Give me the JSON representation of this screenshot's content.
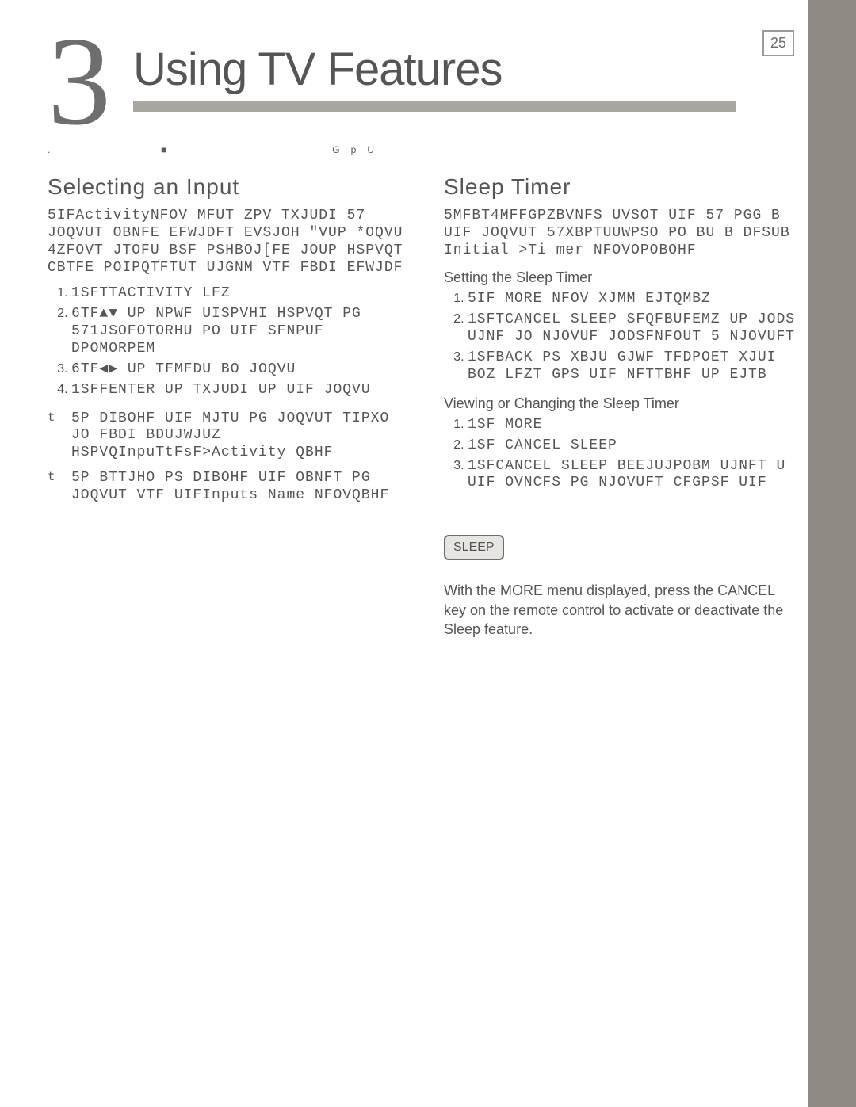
{
  "page_number": "25",
  "chapter_number_glyph": "3",
  "chapter_title": "Using TV Features",
  "ghost_row": ".                                ■                                                G   p   U",
  "col_left": {
    "title": "Selecting an Input",
    "intro": "5IFActivityNFOV MFUT ZPV TXJUDI 57 JOQVUT OBNFE EFWJDFT EVSJOH \"VUP *OQVU 4ZFOVT JTOFU BSF PSHBOJ[FE JOUP HSPVQT CBTFE POIPQTFTUT UJGNM VTF FBDI EFWJDF",
    "steps": [
      "1SFTTACTIVITY LFZ",
      "6TF▲▼ UP NPWF UISPVHI HSPVQT PG 571JSOFOTORHU PO UIF SFNPUF DPOMORPEM",
      "6TF◀▶ UP TFMFDU BO JOQVU",
      "1SFFENTER UP TXJUDI UP UIF JOQVU"
    ],
    "bullets": [
      "5P DIBOHF UIF MJTU PG JOQVUT TIPXO JO FBDI BDUJWJUZ HSPVQInpuTtFsF>Activity QBHF",
      "5P BTTJHO PS DIBOHF UIF OBNFT PG JOQVUT VTF UIFInputs Name NFOVQBHF"
    ]
  },
  "col_right": {
    "title": "Sleep Timer",
    "intro": "5MFBT4MFFGPZBVNFS UVSOT UIF 57 PGG B UIF JOQVUT 57XBPTUUWPSO PO BU B DFSUB Initial >Ti mer NFOVOPOBOHF",
    "setting_head": "Setting the Sleep Timer",
    "setting_steps": [
      "5IF MORE NFOV XJMM EJTQMBZ",
      "1SFTCANCEL SLEEP SFQFBUFEMZ UP JODS UJNF JO NJOVUF JODSFNFOUT 5 NJOVUFT",
      "1SFBACK PS XBJU GJWF TFDPOET XJUI BOZ LFZT GPS UIF NFTTBHF UP EJTB"
    ],
    "viewing_head": "Viewing or Changing the Sleep Timer",
    "viewing_steps": [
      "1SF MORE",
      "1SF CANCEL SLEEP",
      "1SFCANCEL SLEEP BEEJUJPOBM UJNFT U UIF OVNCFS PG NJOVUFT CFGPSF UIF"
    ],
    "chip": "SLEEP",
    "note": "With the MORE menu displayed, press the CANCEL key on the remote control to activate or deactivate the Sleep feature."
  },
  "colors": {
    "side_bar": "#8f8b84",
    "rule": "#a9a6a0",
    "text": "#555555",
    "big_digit": "#6e6e6e",
    "box_border": "#9a9a9a",
    "chip_bg": "#e7e5e1"
  }
}
